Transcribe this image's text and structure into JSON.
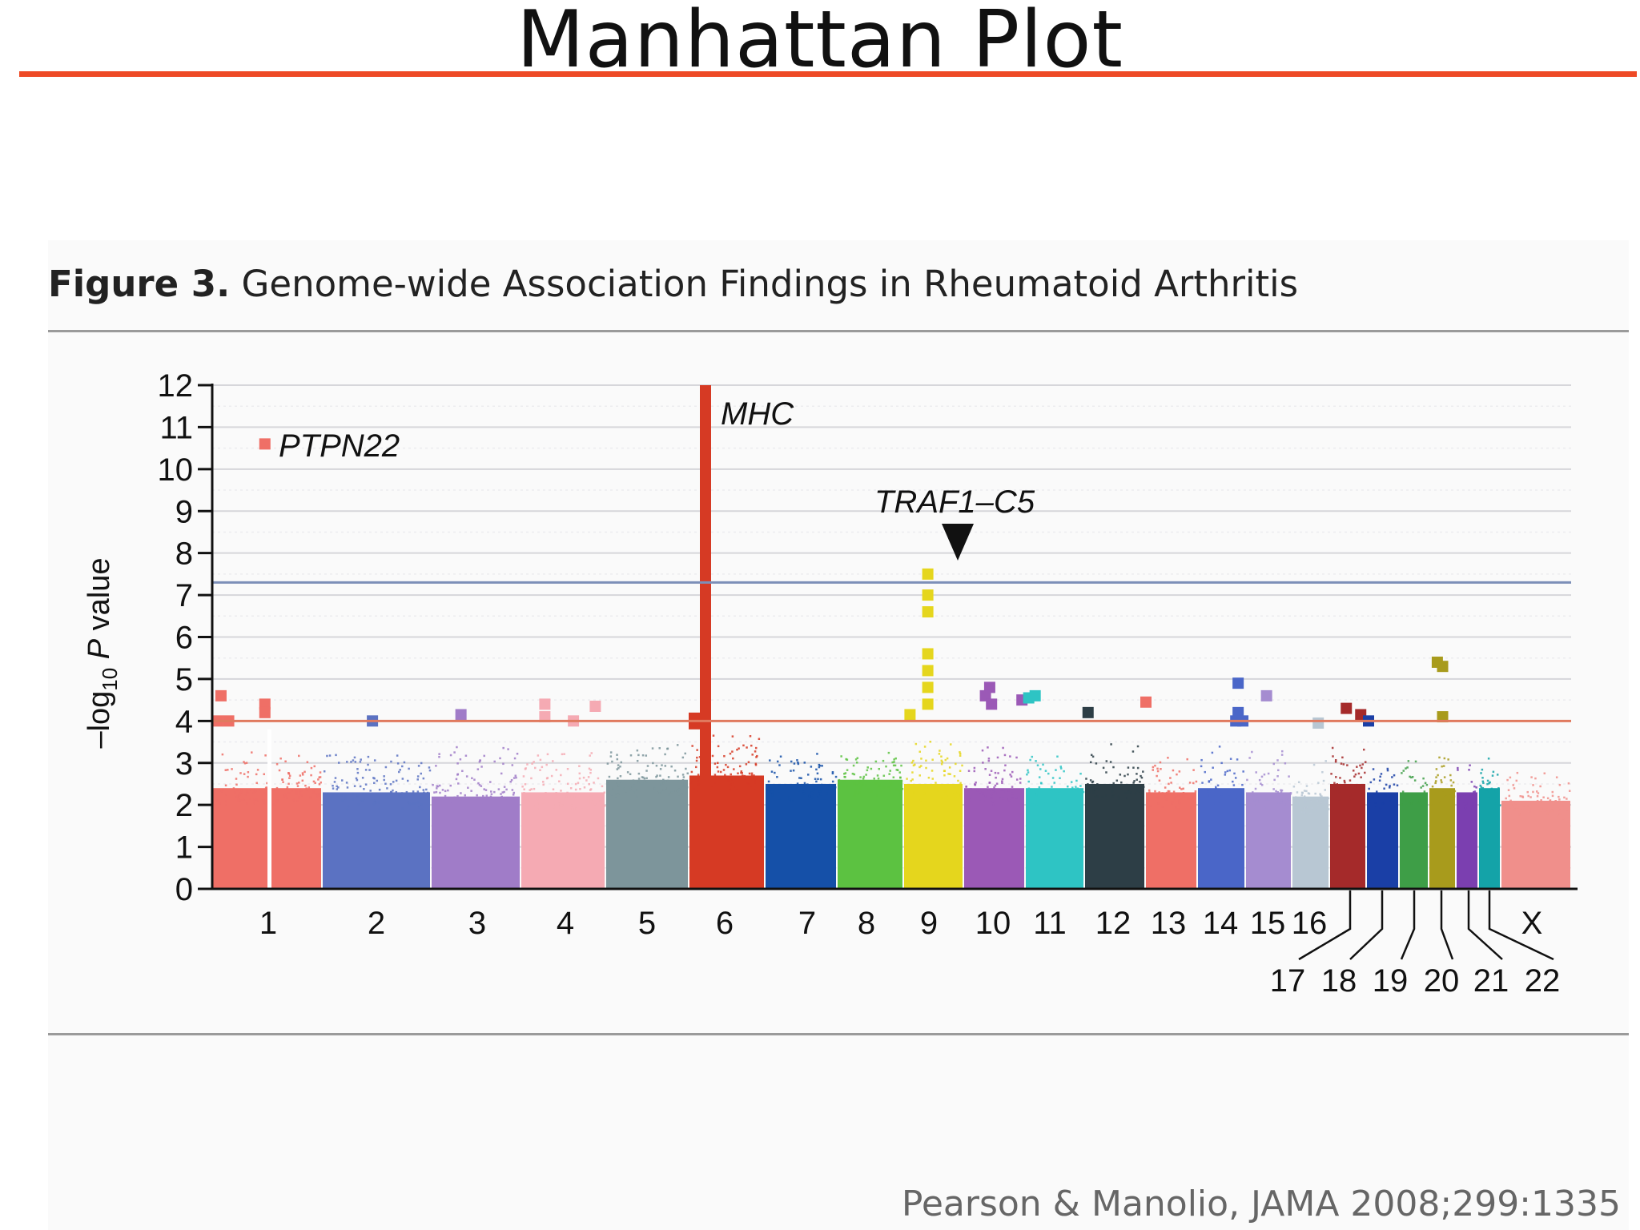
{
  "slide": {
    "title": "Manhattan Plot",
    "accent_color": "#ee4a26",
    "citation": "Pearson & Manolio, JAMA 2008;299:1335"
  },
  "figure": {
    "caption_label": "Figure 3.",
    "caption_text": " Genome-wide Association Findings in Rheumatoid Arthritis"
  },
  "chart_data": {
    "type": "scatter",
    "subtype": "manhattan",
    "title": "",
    "xlabel": "",
    "ylabel_parts": {
      "pre": "–log",
      "sub": "10",
      "italic": " P",
      "post": " value"
    },
    "ylim": [
      0,
      12
    ],
    "yticks": [
      0,
      1,
      2,
      3,
      4,
      5,
      6,
      7,
      8,
      9,
      10,
      11,
      12
    ],
    "grid": true,
    "thresholds": [
      {
        "y": 7.3,
        "color": "#7c8fb8"
      },
      {
        "y": 4.0,
        "color": "#e07a5f"
      }
    ],
    "chromosomes": [
      {
        "label": "1",
        "color": "#ef6f66",
        "bulk_max": 2.4,
        "noise_max": 3.4
      },
      {
        "label": "2",
        "color": "#5b72c2",
        "bulk_max": 2.3,
        "noise_max": 3.5
      },
      {
        "label": "3",
        "color": "#a07cc8",
        "bulk_max": 2.2,
        "noise_max": 3.6
      },
      {
        "label": "4",
        "color": "#f5aab3",
        "bulk_max": 2.3,
        "noise_max": 3.4
      },
      {
        "label": "5",
        "color": "#7d959b",
        "bulk_max": 2.6,
        "noise_max": 3.6
      },
      {
        "label": "6",
        "color": "#d63a24",
        "bulk_max": 2.7,
        "noise_max": 3.8
      },
      {
        "label": "7",
        "color": "#1550a8",
        "bulk_max": 2.5,
        "noise_max": 3.3
      },
      {
        "label": "8",
        "color": "#5cc241",
        "bulk_max": 2.6,
        "noise_max": 3.3
      },
      {
        "label": "9",
        "color": "#e5d61d",
        "bulk_max": 2.5,
        "noise_max": 3.6
      },
      {
        "label": "10",
        "color": "#9b59b6",
        "bulk_max": 2.4,
        "noise_max": 3.5
      },
      {
        "label": "11",
        "color": "#2ec4c4",
        "bulk_max": 2.4,
        "noise_max": 3.3
      },
      {
        "label": "12",
        "color": "#2d3e46",
        "bulk_max": 2.5,
        "noise_max": 3.5
      },
      {
        "label": "13",
        "color": "#ef6f66",
        "bulk_max": 2.3,
        "noise_max": 3.2
      },
      {
        "label": "14",
        "color": "#4a66c8",
        "bulk_max": 2.4,
        "noise_max": 3.6
      },
      {
        "label": "15",
        "color": "#a58cd0",
        "bulk_max": 2.3,
        "noise_max": 3.4
      },
      {
        "label": "16",
        "color": "#b8c7d3",
        "bulk_max": 2.2,
        "noise_max": 3.3
      },
      {
        "label": "17",
        "color": "#a52a2a",
        "bulk_max": 2.5,
        "noise_max": 3.5
      },
      {
        "label": "18",
        "color": "#1a3fa6",
        "bulk_max": 2.3,
        "noise_max": 3.1
      },
      {
        "label": "19",
        "color": "#3e9e47",
        "bulk_max": 2.3,
        "noise_max": 3.3
      },
      {
        "label": "20",
        "color": "#a89b1c",
        "bulk_max": 2.4,
        "noise_max": 3.5
      },
      {
        "label": "21",
        "color": "#7b3fb0",
        "bulk_max": 2.3,
        "noise_max": 3.2
      },
      {
        "label": "22",
        "color": "#14a3a8",
        "bulk_max": 2.4,
        "noise_max": 3.3
      },
      {
        "label": "X",
        "color": "#f08f8b",
        "bulk_max": 2.1,
        "noise_max": 2.9
      }
    ],
    "highlights": [
      {
        "chr": "1",
        "pos": 0.08,
        "y": 4.6
      },
      {
        "chr": "1",
        "pos": 0.05,
        "y": 4.0
      },
      {
        "chr": "1",
        "pos": 0.15,
        "y": 4.0
      },
      {
        "chr": "1",
        "pos": 0.48,
        "y": 4.4
      },
      {
        "chr": "1",
        "pos": 0.48,
        "y": 4.2
      },
      {
        "chr": "1",
        "pos": 0.48,
        "y": 10.6
      },
      {
        "chr": "2",
        "pos": 0.46,
        "y": 4.0
      },
      {
        "chr": "3",
        "pos": 0.33,
        "y": 4.15
      },
      {
        "chr": "4",
        "pos": 0.28,
        "y": 4.4
      },
      {
        "chr": "4",
        "pos": 0.28,
        "y": 4.1
      },
      {
        "chr": "4",
        "pos": 0.62,
        "y": 4.0
      },
      {
        "chr": "4",
        "pos": 0.88,
        "y": 4.35
      },
      {
        "chr": "9",
        "pos": 0.4,
        "y": 7.5
      },
      {
        "chr": "9",
        "pos": 0.4,
        "y": 7.0
      },
      {
        "chr": "9",
        "pos": 0.4,
        "y": 6.6
      },
      {
        "chr": "9",
        "pos": 0.4,
        "y": 5.6
      },
      {
        "chr": "9",
        "pos": 0.4,
        "y": 5.2
      },
      {
        "chr": "9",
        "pos": 0.4,
        "y": 4.8
      },
      {
        "chr": "9",
        "pos": 0.4,
        "y": 4.4
      },
      {
        "chr": "9",
        "pos": 0.1,
        "y": 4.15
      },
      {
        "chr": "10",
        "pos": 0.42,
        "y": 4.8
      },
      {
        "chr": "10",
        "pos": 0.35,
        "y": 4.6
      },
      {
        "chr": "10",
        "pos": 0.45,
        "y": 4.4
      },
      {
        "chr": "10",
        "pos": 0.95,
        "y": 4.5
      },
      {
        "chr": "11",
        "pos": 0.05,
        "y": 4.55
      },
      {
        "chr": "11",
        "pos": 0.16,
        "y": 4.6
      },
      {
        "chr": "12",
        "pos": 0.05,
        "y": 4.2
      },
      {
        "chr": "13",
        "pos": 0.0,
        "y": 4.45
      },
      {
        "chr": "14",
        "pos": 0.85,
        "y": 4.9
      },
      {
        "chr": "14",
        "pos": 0.85,
        "y": 4.2
      },
      {
        "chr": "14",
        "pos": 0.8,
        "y": 4.0
      },
      {
        "chr": "14",
        "pos": 0.95,
        "y": 4.0
      },
      {
        "chr": "15",
        "pos": 0.45,
        "y": 4.6
      },
      {
        "chr": "16",
        "pos": 0.7,
        "y": 3.95
      },
      {
        "chr": "17",
        "pos": 0.45,
        "y": 4.3
      },
      {
        "chr": "17",
        "pos": 0.85,
        "y": 4.15
      },
      {
        "chr": "18",
        "pos": 0.05,
        "y": 4.0
      },
      {
        "chr": "20",
        "pos": 0.3,
        "y": 5.4
      },
      {
        "chr": "20",
        "pos": 0.5,
        "y": 5.3
      },
      {
        "chr": "20",
        "pos": 0.5,
        "y": 4.1
      }
    ],
    "annotations": [
      {
        "text": "PTPN22",
        "italic": true
      },
      {
        "text": "MHC",
        "italic": true
      },
      {
        "text": "TRAF1–C5",
        "italic": true
      }
    ]
  }
}
